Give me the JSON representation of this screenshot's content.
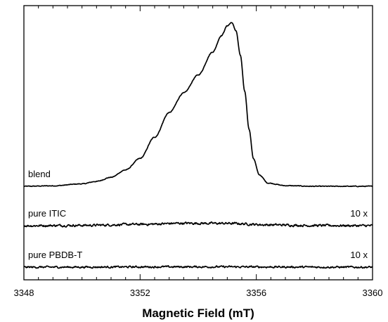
{
  "chart_data": {
    "type": "line",
    "xlabel": "Magnetic Field (mT)",
    "ylabel": "",
    "xlim": [
      3348,
      3360
    ],
    "x_ticks": [
      3348,
      3352,
      3356,
      3360
    ],
    "x_tick_labels": [
      "3348",
      "3352",
      "3356",
      "3360"
    ],
    "minor_tick_step": 0.5,
    "y_tick_labels": false,
    "grid": false,
    "line_color": "#000000",
    "series": [
      {
        "name": "blend",
        "scale_label": "",
        "baseline": 0,
        "noise_amplitude": 0.004,
        "x": [
          3348,
          3349,
          3350,
          3350.5,
          3351,
          3351.5,
          3352,
          3352.5,
          3353,
          3353.5,
          3354,
          3354.5,
          3354.8,
          3355,
          3355.15,
          3355.3,
          3355.45,
          3355.6,
          3355.75,
          3355.9,
          3356.1,
          3356.4,
          3357,
          3358,
          3360
        ],
        "y": [
          0,
          0.003,
          0.015,
          0.03,
          0.055,
          0.1,
          0.17,
          0.3,
          0.45,
          0.57,
          0.68,
          0.82,
          0.92,
          0.98,
          1.0,
          0.95,
          0.8,
          0.58,
          0.35,
          0.17,
          0.07,
          0.02,
          0.004,
          0,
          0
        ]
      },
      {
        "name": "pure ITIC",
        "scale_label": "10 x",
        "baseline": 0,
        "noise_amplitude": 0.012,
        "x": [
          3348,
          3350,
          3352,
          3353.5,
          3355,
          3356.5,
          3358,
          3360
        ],
        "y": [
          0,
          0.002,
          0.008,
          0.015,
          0.014,
          0.005,
          0.001,
          0
        ]
      },
      {
        "name": "pure PBDB-T",
        "scale_label": "10 x",
        "baseline": 0,
        "noise_amplitude": 0.01,
        "x": [
          3348,
          3354,
          3360
        ],
        "y": [
          0,
          0.002,
          0
        ]
      }
    ]
  }
}
